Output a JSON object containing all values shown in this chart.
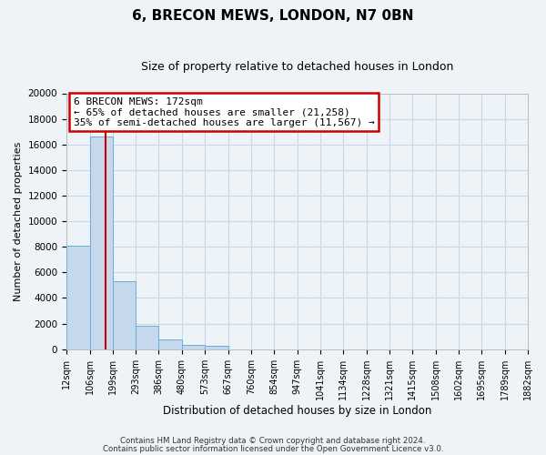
{
  "title": "6, BRECON MEWS, LONDON, N7 0BN",
  "subtitle": "Size of property relative to detached houses in London",
  "xlabel": "Distribution of detached houses by size in London",
  "ylabel": "Number of detached properties",
  "bar_labels": [
    "12sqm",
    "106sqm",
    "199sqm",
    "293sqm",
    "386sqm",
    "480sqm",
    "573sqm",
    "667sqm",
    "760sqm",
    "854sqm",
    "947sqm",
    "1041sqm",
    "1134sqm",
    "1228sqm",
    "1321sqm",
    "1415sqm",
    "1508sqm",
    "1602sqm",
    "1695sqm",
    "1789sqm",
    "1882sqm"
  ],
  "bar_values": [
    8100,
    16600,
    5300,
    1850,
    780,
    310,
    270,
    0,
    0,
    0,
    0,
    0,
    0,
    0,
    0,
    0,
    0,
    0,
    0,
    0
  ],
  "bar_color": "#c6d9ec",
  "bar_edge_color": "#6aaed6",
  "property_line_x": 172,
  "property_line_label": "6 BRECON MEWS: 172sqm",
  "annotation_line1": "← 65% of detached houses are smaller (21,258)",
  "annotation_line2": "35% of semi-detached houses are larger (11,567) →",
  "annotation_box_color": "#ffffff",
  "annotation_box_edge": "#cc0000",
  "line_color": "#cc0000",
  "ylim": [
    0,
    20000
  ],
  "yticks": [
    0,
    2000,
    4000,
    6000,
    8000,
    10000,
    12000,
    14000,
    16000,
    18000,
    20000
  ],
  "grid_color": "#c8d8ea",
  "bg_color": "#eef3f8",
  "footer1": "Contains HM Land Registry data © Crown copyright and database right 2024.",
  "footer2": "Contains public sector information licensed under the Open Government Licence v3.0.",
  "x_starts": [
    12,
    106,
    199,
    293,
    386,
    480,
    573,
    667,
    760,
    854,
    947,
    1041,
    1134,
    1228,
    1321,
    1415,
    1508,
    1602,
    1695,
    1789
  ],
  "all_x": [
    12,
    106,
    199,
    293,
    386,
    480,
    573,
    667,
    760,
    854,
    947,
    1041,
    1134,
    1228,
    1321,
    1415,
    1508,
    1602,
    1695,
    1789,
    1882
  ]
}
